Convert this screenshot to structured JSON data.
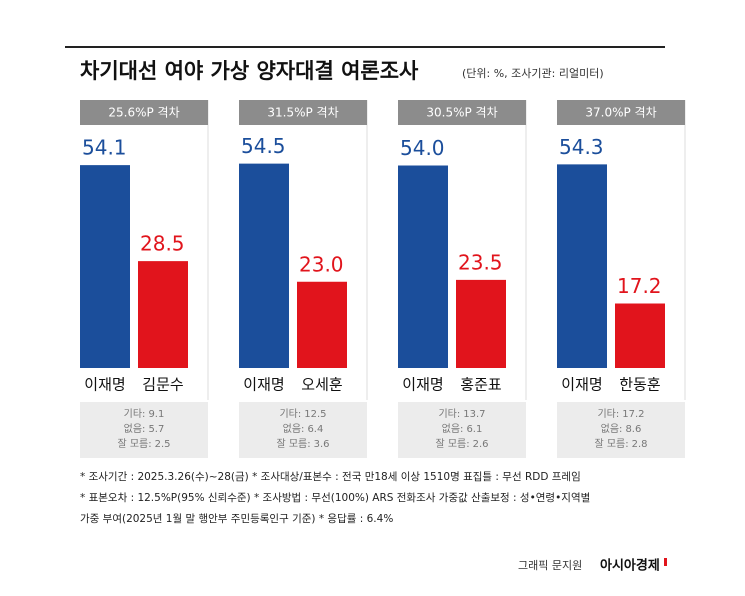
{
  "title": "차기대선 여야 가상 양자대결 여론조사",
  "unit_note": "(단위: %, 조사기관: 리얼미터)",
  "chart_data": [
    {
      "type": "bar",
      "subtitle": "25.6%P 격차",
      "categories": [
        "이재명",
        "김문수"
      ],
      "values": [
        54.1,
        28.5
      ],
      "value_labels": [
        "54.1",
        "28.5"
      ],
      "colors": [
        "#1b4e9b",
        "#e1141c"
      ],
      "notes": [
        {
          "label": "기타:",
          "value": 9.1
        },
        {
          "label": "없음:",
          "value": 5.7
        },
        {
          "label": "잘 모름:",
          "value": 2.5
        }
      ]
    },
    {
      "type": "bar",
      "subtitle": "31.5%P 격차",
      "categories": [
        "이재명",
        "오세훈"
      ],
      "values": [
        54.5,
        23.0
      ],
      "value_labels": [
        "54.5",
        "23.0"
      ],
      "colors": [
        "#1b4e9b",
        "#e1141c"
      ],
      "notes": [
        {
          "label": "기타:",
          "value": 12.5
        },
        {
          "label": "없음:",
          "value": 6.4
        },
        {
          "label": "잘 모름:",
          "value": 3.6
        }
      ]
    },
    {
      "type": "bar",
      "subtitle": "30.5%P 격차",
      "categories": [
        "이재명",
        "홍준표"
      ],
      "values": [
        54.0,
        23.5
      ],
      "value_labels": [
        "54.0",
        "23.5"
      ],
      "colors": [
        "#1b4e9b",
        "#e1141c"
      ],
      "notes": [
        {
          "label": "기타:",
          "value": 13.7
        },
        {
          "label": "없음:",
          "value": 6.1
        },
        {
          "label": "잘 모름:",
          "value": 2.6
        }
      ]
    },
    {
      "type": "bar",
      "subtitle": "37.0%P 격차",
      "categories": [
        "이재명",
        "한동훈"
      ],
      "values": [
        54.3,
        17.2
      ],
      "value_labels": [
        "54.3",
        "17.2"
      ],
      "colors": [
        "#1b4e9b",
        "#e1141c"
      ],
      "notes": [
        {
          "label": "기타:",
          "value": 17.2
        },
        {
          "label": "없음:",
          "value": 8.6
        },
        {
          "label": "잘 모름:",
          "value": 2.8
        }
      ]
    }
  ],
  "footnotes": [
    "* 조사기간 : 2025.3.26(수)~28(금)   * 조사대상/표본수 : 전국 만18세 이상 1510명 표집틀 : 무선 RDD 프레임",
    "* 표본오차 : 12.5%P(95% 신뢰수준)   * 조사방법 : 무선(100%) ARS 전화조사 가중값 산출보정 : 성•연령•지역별",
    "가중 부여(2025년 1월 말 행안부 주민등록인구 기준)   * 응답률 : 6.4%"
  ],
  "credit": {
    "author": "그래픽 문지원",
    "publisher": "아시아경제"
  }
}
